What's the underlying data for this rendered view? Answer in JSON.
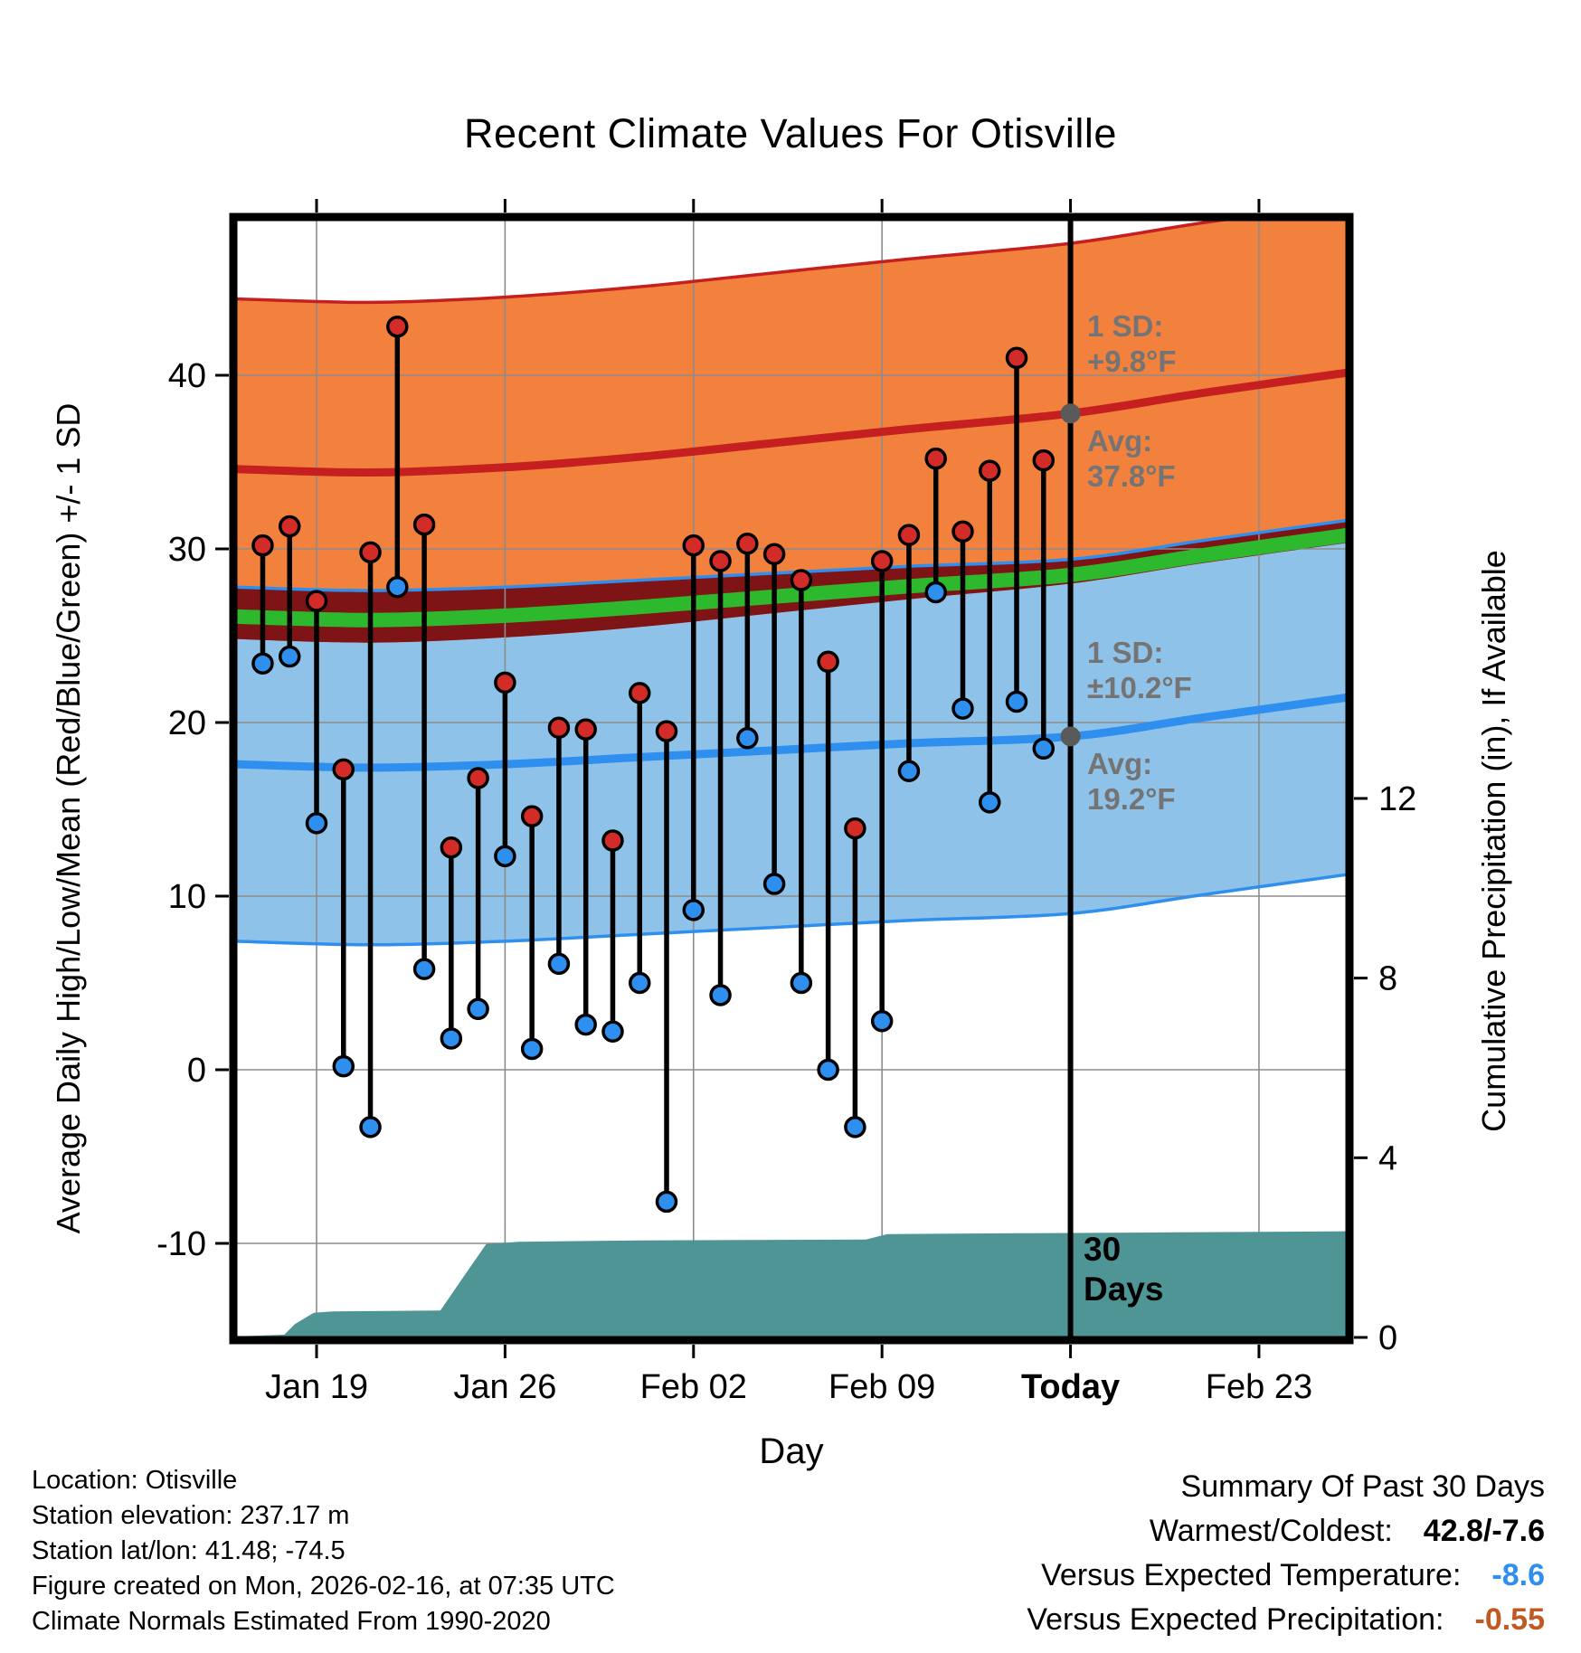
{
  "chart_data": {
    "type": "line",
    "title": "Recent Climate Values For Otisville",
    "xlabel": "Day",
    "ylabel_left": "Average Daily High/Low/Mean (Red/Blue/Green) +/- 1 SD",
    "ylabel_right": "Cumulative Precipitation (in), If Available",
    "x_ticks": [
      {
        "label": "Jan 19",
        "day": 2,
        "bold": false
      },
      {
        "label": "Jan 26",
        "day": 9,
        "bold": false
      },
      {
        "label": "Feb 02",
        "day": 16,
        "bold": false
      },
      {
        "label": "Feb 09",
        "day": 23,
        "bold": false
      },
      {
        "label": "Today",
        "day": 30,
        "bold": true
      },
      {
        "label": "Feb 23",
        "day": 37,
        "bold": false
      }
    ],
    "y_left_ticks": [
      -10,
      0,
      10,
      20,
      30,
      40
    ],
    "y_right_ticks": [
      0,
      4,
      8,
      12
    ],
    "dates": [
      "Jan 17",
      "Jan 18",
      "Jan 19",
      "Jan 20",
      "Jan 21",
      "Jan 22",
      "Jan 23",
      "Jan 24",
      "Jan 25",
      "Jan 26",
      "Jan 27",
      "Jan 28",
      "Jan 29",
      "Jan 30",
      "Jan 31",
      "Feb 01",
      "Feb 02",
      "Feb 03",
      "Feb 04",
      "Feb 05",
      "Feb 06",
      "Feb 07",
      "Feb 08",
      "Feb 09",
      "Feb 10",
      "Feb 11",
      "Feb 12",
      "Feb 13",
      "Feb 14",
      "Feb 15"
    ],
    "daily_high_f": [
      30.2,
      31.3,
      27.0,
      17.3,
      29.8,
      42.8,
      31.4,
      12.8,
      16.8,
      22.3,
      14.6,
      19.7,
      19.6,
      13.2,
      21.7,
      19.5,
      30.2,
      29.3,
      30.3,
      29.7,
      28.2,
      23.5,
      13.9,
      29.3,
      30.8,
      35.2,
      31.0,
      34.5,
      41.0,
      35.1
    ],
    "daily_low_f": [
      23.4,
      23.8,
      14.2,
      0.2,
      -3.3,
      27.8,
      5.8,
      1.8,
      3.5,
      12.3,
      1.2,
      6.1,
      2.6,
      2.2,
      5.0,
      -7.6,
      9.2,
      4.3,
      19.1,
      10.7,
      5.0,
      0.0,
      -3.3,
      2.8,
      17.2,
      27.5,
      20.8,
      15.4,
      21.2,
      18.5
    ],
    "normals": {
      "anchor_days": [
        -1,
        4,
        9,
        14,
        19,
        24,
        30,
        35,
        41
      ],
      "high_avg_f": [
        34.6,
        34.4,
        34.7,
        35.3,
        36.1,
        36.9,
        37.8,
        39.0,
        40.3
      ],
      "low_avg_f": [
        17.6,
        17.4,
        17.6,
        18.0,
        18.4,
        18.8,
        19.2,
        20.3,
        21.6
      ],
      "high_sd_f": 9.8,
      "low_sd_f": 10.2
    },
    "today_day": 30,
    "today_high_avg_f": 37.8,
    "today_low_avg_f": 19.2,
    "precip_cumulative_in": [
      [
        -1.1,
        0.02
      ],
      [
        0.8,
        0.06
      ],
      [
        1.2,
        0.3
      ],
      [
        1.9,
        0.55
      ],
      [
        2.6,
        0.58
      ],
      [
        6.6,
        0.6
      ],
      [
        7.4,
        1.3
      ],
      [
        8.3,
        2.08
      ],
      [
        9.5,
        2.13
      ],
      [
        14,
        2.16
      ],
      [
        22.4,
        2.18
      ],
      [
        23.2,
        2.3
      ],
      [
        28,
        2.32
      ],
      [
        34,
        2.34
      ],
      [
        42,
        2.37
      ]
    ],
    "colors": {
      "high_band": "#F2813D",
      "high_line": "#C5201F",
      "high_dot": "#D32B28",
      "low_band": "#8FC2E9",
      "low_line": "#2E8FEF",
      "low_dot": "#2E8FEF",
      "overlap_band": "#7E1416",
      "mean_line": "#2EB82E",
      "precip_fill": "#4F9596",
      "grid": "#8C8C8C",
      "annotation_gray": "#747474"
    }
  },
  "annotations": {
    "high_sd_label": "1 SD:",
    "high_sd_value": "+9.8°F",
    "high_avg_label": "Avg:",
    "high_avg_value": "37.8°F",
    "low_sd_label": "1 SD:",
    "low_sd_value": "±10.2°F",
    "low_avg_label": "Avg:",
    "low_avg_value": "19.2°F",
    "today_line1": "30",
    "today_line2": "Days"
  },
  "footer": {
    "lines": [
      "Location: Otisville",
      "Station elevation: 237.17 m",
      "Station lat/lon: 41.48; -74.5",
      "Figure created on Mon, 2026-02-16, at 07:35 UTC",
      "Climate Normals Estimated From 1990-2020"
    ]
  },
  "summary": {
    "title": "Summary Of Past 30 Days",
    "rows": [
      {
        "label": "Warmest/Coldest:",
        "value": "42.8/-7.6",
        "color": "#000000"
      },
      {
        "label": "Versus Expected Temperature:",
        "value": "-8.6",
        "color": "#2E8FEF"
      },
      {
        "label": "Versus Expected Precipitation:",
        "value": "-0.55",
        "color": "#C05A24"
      }
    ]
  }
}
